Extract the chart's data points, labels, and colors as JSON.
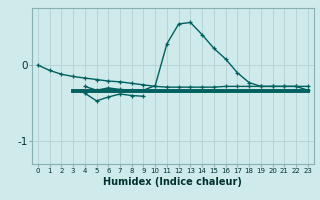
{
  "xlabel": "Humidex (Indice chaleur)",
  "x_values": [
    0,
    1,
    2,
    3,
    4,
    5,
    6,
    7,
    8,
    9,
    10,
    11,
    12,
    13,
    14,
    15,
    16,
    17,
    18,
    19,
    20,
    21,
    22,
    23
  ],
  "line1_y": [
    0.0,
    -0.07,
    -0.12,
    -0.15,
    -0.17,
    -0.19,
    -0.21,
    -0.22,
    -0.24,
    -0.26,
    -0.28,
    -0.29,
    -0.29,
    -0.29,
    -0.29,
    -0.29,
    -0.28,
    -0.28,
    -0.28,
    -0.28,
    -0.28,
    -0.28,
    -0.28,
    -0.28
  ],
  "line2_y": [
    null,
    null,
    null,
    null,
    -0.28,
    -0.33,
    -0.3,
    -0.32,
    -0.33,
    -0.33,
    -0.27,
    0.28,
    0.54,
    0.56,
    0.4,
    0.22,
    0.08,
    -0.1,
    -0.23,
    -0.28,
    -0.28,
    -0.28,
    -0.28,
    -0.33
  ],
  "line3_y": [
    null,
    null,
    null,
    null,
    -0.37,
    -0.47,
    -0.42,
    -0.38,
    -0.4,
    -0.41,
    null,
    null,
    null,
    null,
    null,
    null,
    null,
    null,
    null,
    null,
    null,
    null,
    null,
    null
  ],
  "flat_line_y": -0.34,
  "flat_line_x_start": 3,
  "flat_line_x_end": 23,
  "bg_color": "#ceeaea",
  "grid_color": "#b8d4d4",
  "line_color": "#006060",
  "ylim": [
    -1.3,
    0.75
  ],
  "yticks": [
    -1,
    0
  ],
  "xlim": [
    -0.5,
    23.5
  ]
}
